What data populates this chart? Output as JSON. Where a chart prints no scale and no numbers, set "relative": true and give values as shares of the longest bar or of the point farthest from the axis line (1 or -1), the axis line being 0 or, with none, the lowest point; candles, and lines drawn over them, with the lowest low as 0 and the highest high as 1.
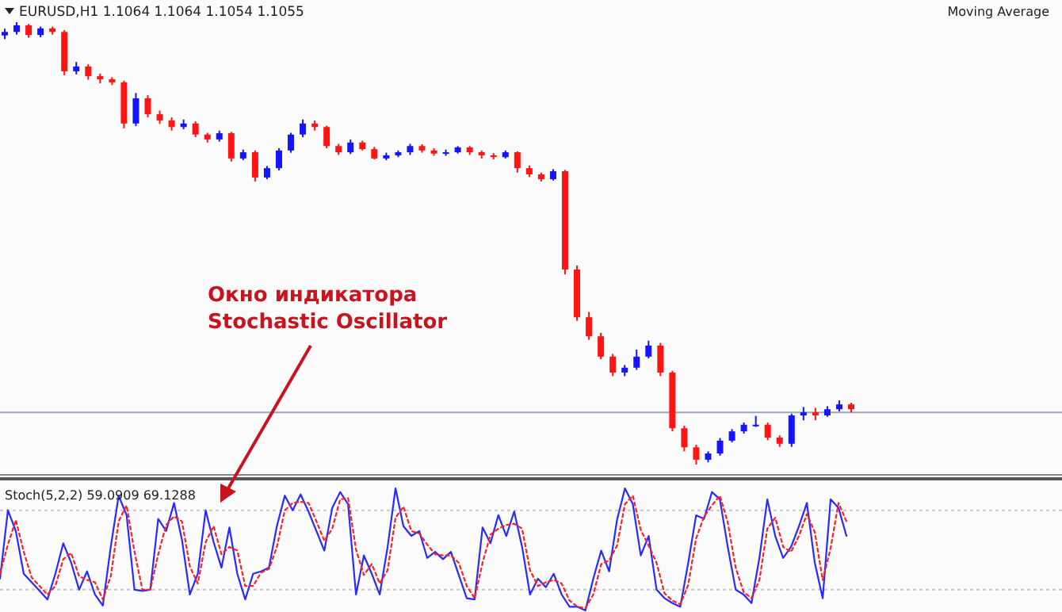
{
  "chart_data": [
    {
      "type": "candlestick",
      "title": "EURUSD,H1 1.1064 1.1064 1.1054 1.1055",
      "relative": true,
      "annotations": [
        "Moving Average",
        "Окно индикатора\nStochastic Oscillator"
      ],
      "colors": [
        "#1414ff",
        "#1414ff",
        "#ff1414",
        "#1414ff",
        "#ff1414",
        "#ff1414",
        "#1414ff",
        "#ff1414",
        "#ff1414",
        "#ff1414",
        "#ff1414",
        "#1414ff",
        "#ff1414",
        "#ff1414",
        "#ff1414",
        "#1414ff",
        "#ff1414",
        "#ff1414",
        "#1414ff",
        "#ff1414",
        "#1414ff",
        "#ff1414",
        "#1414ff",
        "#1414ff",
        "#1414ff",
        "#1414ff",
        "#ff1414",
        "#ff1414",
        "#ff1414",
        "#1414ff",
        "#ff1414",
        "#ff1414",
        "#1414ff",
        "#1414ff",
        "#1414ff",
        "#ff1414",
        "#ff1414",
        "#1414ff",
        "#1414ff",
        "#ff1414",
        "#ff1414",
        "#ff1414",
        "#1414ff",
        "#ff1414",
        "#ff1414",
        "#ff1414",
        "#1414ff",
        "#ff1414",
        "#ff1414",
        "#ff1414",
        "#ff1414",
        "#ff1414",
        "#1414ff",
        "#1414ff",
        "#1414ff",
        "#ff1414",
        "#ff1414",
        "#ff1414",
        "#ff1414",
        "#1414ff",
        "#1414ff",
        "#1414ff",
        "#1414ff",
        "#1414ff",
        "#ff1414",
        "#ff1414",
        "#1414ff",
        "#1414ff",
        "#ff1414",
        "#1414ff",
        "#1414ff",
        "#ff1414"
      ],
      "ref_lines": [
        {
          "axis": "y",
          "value": 0.118,
          "color": "#9aa8b8"
        }
      ],
      "categories": [
        null,
        null,
        null,
        null,
        null,
        null,
        null,
        null,
        null,
        null,
        null,
        null,
        null,
        null,
        null,
        null,
        null,
        null,
        null,
        null,
        null,
        null,
        null,
        null,
        null,
        null,
        null,
        null,
        null,
        null,
        null,
        null,
        null,
        null,
        null,
        null,
        null,
        null,
        null,
        null,
        null,
        null,
        null,
        null,
        null,
        null,
        null,
        null,
        null,
        null,
        null,
        null,
        null,
        null,
        null,
        null,
        null,
        null,
        null,
        null,
        null,
        null,
        null,
        null,
        null,
        null,
        null,
        null,
        null,
        null,
        null,
        null
      ],
      "ohlc": [
        [
          0.97,
          0.985,
          0.962,
          0.978
        ],
        [
          0.978,
          1,
          0.972,
          0.993
        ],
        [
          0.993,
          0.996,
          0.965,
          0.971
        ],
        [
          0.971,
          0.99,
          0.966,
          0.986
        ],
        [
          0.986,
          0.99,
          0.972,
          0.978
        ],
        [
          0.978,
          0.982,
          0.88,
          0.889
        ],
        [
          0.889,
          0.91,
          0.882,
          0.9
        ],
        [
          0.9,
          0.905,
          0.87,
          0.878
        ],
        [
          0.878,
          0.884,
          0.862,
          0.871
        ],
        [
          0.871,
          0.876,
          0.858,
          0.864
        ],
        [
          0.864,
          0.868,
          0.76,
          0.771
        ],
        [
          0.771,
          0.84,
          0.765,
          0.828
        ],
        [
          0.828,
          0.835,
          0.785,
          0.792
        ],
        [
          0.792,
          0.8,
          0.77,
          0.778
        ],
        [
          0.778,
          0.785,
          0.755,
          0.763
        ],
        [
          0.763,
          0.78,
          0.758,
          0.771
        ],
        [
          0.771,
          0.776,
          0.74,
          0.746
        ],
        [
          0.746,
          0.75,
          0.728,
          0.735
        ],
        [
          0.735,
          0.755,
          0.73,
          0.749
        ],
        [
          0.749,
          0.752,
          0.685,
          0.692
        ],
        [
          0.692,
          0.712,
          0.688,
          0.706
        ],
        [
          0.706,
          0.71,
          0.64,
          0.649
        ],
        [
          0.649,
          0.675,
          0.645,
          0.67
        ],
        [
          0.67,
          0.715,
          0.665,
          0.71
        ],
        [
          0.71,
          0.75,
          0.705,
          0.746
        ],
        [
          0.746,
          0.78,
          0.74,
          0.771
        ],
        [
          0.771,
          0.778,
          0.755,
          0.763
        ],
        [
          0.763,
          0.766,
          0.715,
          0.72
        ],
        [
          0.72,
          0.725,
          0.7,
          0.706
        ],
        [
          0.706,
          0.735,
          0.702,
          0.728
        ],
        [
          0.728,
          0.732,
          0.71,
          0.713
        ],
        [
          0.713,
          0.718,
          0.69,
          0.692
        ],
        [
          0.692,
          0.705,
          0.688,
          0.699
        ],
        [
          0.699,
          0.71,
          0.695,
          0.706
        ],
        [
          0.706,
          0.725,
          0.7,
          0.72
        ],
        [
          0.72,
          0.724,
          0.705,
          0.71
        ],
        [
          0.71,
          0.715,
          0.698,
          0.703
        ],
        [
          0.703,
          0.712,
          0.698,
          0.706
        ],
        [
          0.706,
          0.72,
          0.703,
          0.717
        ],
        [
          0.717,
          0.72,
          0.7,
          0.706
        ],
        [
          0.706,
          0.71,
          0.692,
          0.699
        ],
        [
          0.699,
          0.704,
          0.69,
          0.695
        ],
        [
          0.695,
          0.71,
          0.692,
          0.706
        ],
        [
          0.706,
          0.708,
          0.66,
          0.67
        ],
        [
          0.67,
          0.676,
          0.65,
          0.656
        ],
        [
          0.656,
          0.66,
          0.64,
          0.645
        ],
        [
          0.645,
          0.668,
          0.642,
          0.663
        ],
        [
          0.663,
          0.666,
          0.43,
          0.441
        ],
        [
          0.441,
          0.45,
          0.325,
          0.333
        ],
        [
          0.333,
          0.345,
          0.282,
          0.29
        ],
        [
          0.29,
          0.298,
          0.238,
          0.244
        ],
        [
          0.244,
          0.25,
          0.2,
          0.208
        ],
        [
          0.208,
          0.225,
          0.2,
          0.219
        ],
        [
          0.219,
          0.26,
          0.214,
          0.244
        ],
        [
          0.244,
          0.28,
          0.24,
          0.269
        ],
        [
          0.269,
          0.275,
          0.2,
          0.208
        ],
        [
          0.208,
          0.212,
          0.075,
          0.082
        ],
        [
          0.082,
          0.088,
          0.03,
          0.039
        ],
        [
          0.039,
          0.045,
          0,
          0.011
        ],
        [
          0.011,
          0.03,
          0.005,
          0.025
        ],
        [
          0.025,
          0.06,
          0.02,
          0.054
        ],
        [
          0.054,
          0.08,
          0.05,
          0.075
        ],
        [
          0.075,
          0.095,
          0.07,
          0.09
        ],
        [
          0.09,
          0.11,
          0.085,
          0.09
        ],
        [
          0.09,
          0.095,
          0.055,
          0.061
        ],
        [
          0.061,
          0.066,
          0.04,
          0.047
        ],
        [
          0.047,
          0.115,
          0.04,
          0.111
        ],
        [
          0.111,
          0.13,
          0.1,
          0.118
        ],
        [
          0.118,
          0.128,
          0.1,
          0.111
        ],
        [
          0.111,
          0.132,
          0.108,
          0.125
        ],
        [
          0.125,
          0.145,
          0.12,
          0.136
        ],
        [
          0.136,
          0.14,
          0.118,
          0.125
        ]
      ]
    },
    {
      "type": "line",
      "title": "Stoch(5,2,2) 59.0909 69.1288",
      "relative": true,
      "marker": "none",
      "ref_lines": [
        {
          "axis": "y",
          "value": 0.82,
          "color": "#c8c8c8",
          "line_style": "dotted"
        },
        {
          "axis": "y",
          "value": 0.17,
          "color": "#c8c8c8",
          "line_style": "dotted"
        }
      ],
      "categories": [
        null,
        null,
        null,
        null,
        null,
        null,
        null,
        null,
        null,
        null,
        null,
        null,
        null,
        null,
        null,
        null,
        null,
        null,
        null,
        null,
        null,
        null,
        null,
        null,
        null,
        null,
        null,
        null,
        null,
        null,
        null,
        null,
        null,
        null,
        null,
        null,
        null,
        null,
        null,
        null,
        null,
        null,
        null,
        null,
        null,
        null,
        null,
        null,
        null,
        null,
        null,
        null,
        null,
        null,
        null,
        null,
        null,
        null,
        null,
        null,
        null,
        null,
        null,
        null,
        null,
        null,
        null,
        null,
        null,
        null,
        null,
        null,
        null,
        null,
        null,
        null,
        null,
        null,
        null,
        null,
        null,
        null,
        null,
        null,
        null,
        null,
        null,
        null,
        null,
        null,
        null,
        null,
        null,
        null,
        null,
        null,
        null,
        null,
        null,
        null,
        null,
        null,
        null,
        null,
        null,
        null,
        null,
        null
      ],
      "series": [
        {
          "color": "#2a2aff",
          "line_style": "solid",
          "values": [
            0.26,
            0.82,
            0.65,
            0.3,
            0.23,
            0.16,
            0.09,
            0.3,
            0.55,
            0.39,
            0.17,
            0.32,
            0.13,
            0.04,
            0.52,
            0.94,
            0.78,
            0.17,
            0.16,
            0.17,
            0.75,
            0.65,
            0.88,
            0.58,
            0.13,
            0.3,
            0.82,
            0.56,
            0.35,
            0.68,
            0.3,
            0.09,
            0.3,
            0.32,
            0.35,
            0.69,
            0.94,
            0.82,
            0.95,
            0.81,
            0.65,
            0.49,
            0.84,
            0.97,
            0.87,
            0.13,
            0.45,
            0.3,
            0.13,
            0.52,
            1.0,
            0.69,
            0.61,
            0.65,
            0.43,
            0.48,
            0.42,
            0.48,
            0.29,
            0.1,
            0.09,
            0.68,
            0.55,
            0.78,
            0.61,
            0.81,
            0.52,
            0.13,
            0.26,
            0.19,
            0.3,
            0.13,
            0.03,
            0.03,
            0,
            0.26,
            0.49,
            0.32,
            0.74,
            1.0,
            0.87,
            0.45,
            0.61,
            0.17,
            0.1,
            0.06,
            0.03,
            0.39,
            0.78,
            0.75,
            0.97,
            0.91,
            0.52,
            0.17,
            0.13,
            0.06,
            0.43,
            0.91,
            0.61,
            0.43,
            0.52,
            0.69,
            0.88,
            0.39,
            0.1,
            0.91,
            0.84,
            0.61
          ]
        },
        {
          "color": "#ff2020",
          "line_style": "dotted",
          "values": [
            0.3,
            0.54,
            0.74,
            0.48,
            0.27,
            0.2,
            0.13,
            0.2,
            0.42,
            0.47,
            0.28,
            0.25,
            0.23,
            0.09,
            0.28,
            0.73,
            0.86,
            0.48,
            0.17,
            0.17,
            0.46,
            0.7,
            0.77,
            0.73,
            0.36,
            0.22,
            0.56,
            0.69,
            0.46,
            0.52,
            0.49,
            0.2,
            0.2,
            0.31,
            0.34,
            0.52,
            0.82,
            0.88,
            0.89,
            0.88,
            0.73,
            0.57,
            0.67,
            0.91,
            0.92,
            0.5,
            0.29,
            0.38,
            0.22,
            0.33,
            0.76,
            0.85,
            0.65,
            0.63,
            0.54,
            0.46,
            0.45,
            0.45,
            0.39,
            0.2,
            0.1,
            0.39,
            0.62,
            0.67,
            0.7,
            0.71,
            0.67,
            0.33,
            0.2,
            0.23,
            0.25,
            0.22,
            0.08,
            0.03,
            0.02,
            0.13,
            0.38,
            0.41,
            0.53,
            0.87,
            0.94,
            0.66,
            0.53,
            0.39,
            0.14,
            0.08,
            0.05,
            0.21,
            0.59,
            0.77,
            0.86,
            0.94,
            0.72,
            0.35,
            0.15,
            0.1,
            0.25,
            0.67,
            0.76,
            0.52,
            0.48,
            0.61,
            0.79,
            0.64,
            0.25,
            0.51,
            0.88,
            0.73
          ]
        }
      ]
    }
  ]
}
